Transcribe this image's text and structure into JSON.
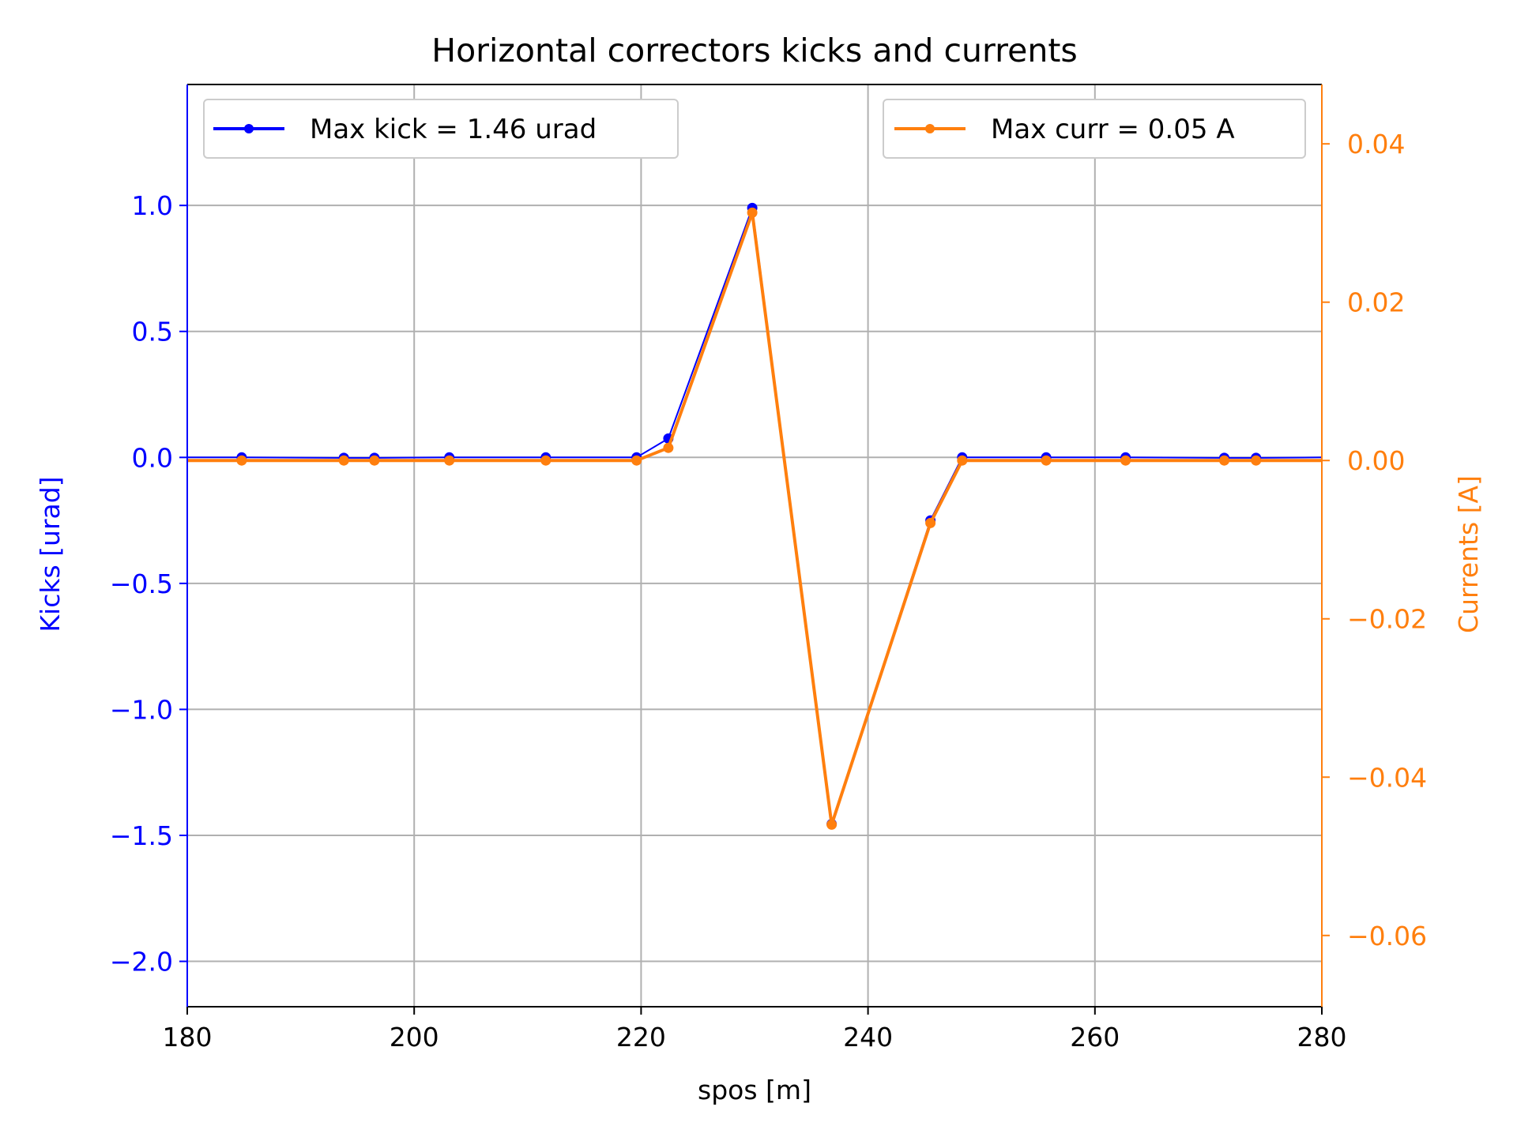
{
  "chart_data": {
    "type": "line",
    "title": "Horizontal correctors kicks and currents",
    "xlabel": "spos [m]",
    "ylabel_left": "Kicks [urad]",
    "ylabel_right": "Currents [A]",
    "xlim": [
      180,
      280
    ],
    "ylim_left": [
      -2.18,
      1.48
    ],
    "ylim_right": [
      -0.069,
      0.0475
    ],
    "xticks": [
      "180",
      "200",
      "220",
      "240",
      "260",
      "280"
    ],
    "yticks_left": [
      "1.0",
      "0.5",
      "0.0",
      "−0.5",
      "−1.0",
      "−1.5",
      "−2.0"
    ],
    "yticks_right": [
      "0.04",
      "0.02",
      "0.00",
      "−0.02",
      "−0.04",
      "−0.06"
    ],
    "grid": true,
    "colors": {
      "kicks": "#0000ff",
      "currents": "#ff7f0e",
      "grid": "#b0b0b0"
    },
    "series": [
      {
        "name": "Max kick = 1.46 urad",
        "axis": "left",
        "x": [
          180,
          184.8,
          193.8,
          196.5,
          203.1,
          211.6,
          219.6,
          222.4,
          229.8,
          236.8,
          245.5,
          248.3,
          255.7,
          262.7,
          271.4,
          274.2,
          280
        ],
        "values": [
          0.0,
          0.0,
          -0.002,
          -0.002,
          0.0,
          0.0,
          0.0,
          0.075,
          0.99,
          -1.455,
          -0.25,
          0.0,
          0.0,
          0.0,
          -0.002,
          -0.002,
          0.0
        ]
      },
      {
        "name": "Max curr = 0.05 A",
        "axis": "right",
        "x": [
          180,
          184.8,
          193.8,
          196.5,
          203.1,
          211.6,
          219.6,
          222.4,
          229.8,
          236.8,
          245.5,
          248.3,
          255.7,
          262.7,
          271.4,
          274.2,
          280
        ],
        "values": [
          0.0,
          0.0,
          0.0,
          0.0,
          0.0,
          0.0,
          0.0,
          0.0016,
          0.0313,
          -0.046,
          -0.0079,
          0.0,
          0.0,
          0.0,
          0.0,
          0.0,
          0.0
        ]
      }
    ],
    "legends": [
      {
        "label": "Max kick = 1.46 urad",
        "placement": "upper-left"
      },
      {
        "label": "Max curr = 0.05 A",
        "placement": "upper-right"
      }
    ]
  }
}
